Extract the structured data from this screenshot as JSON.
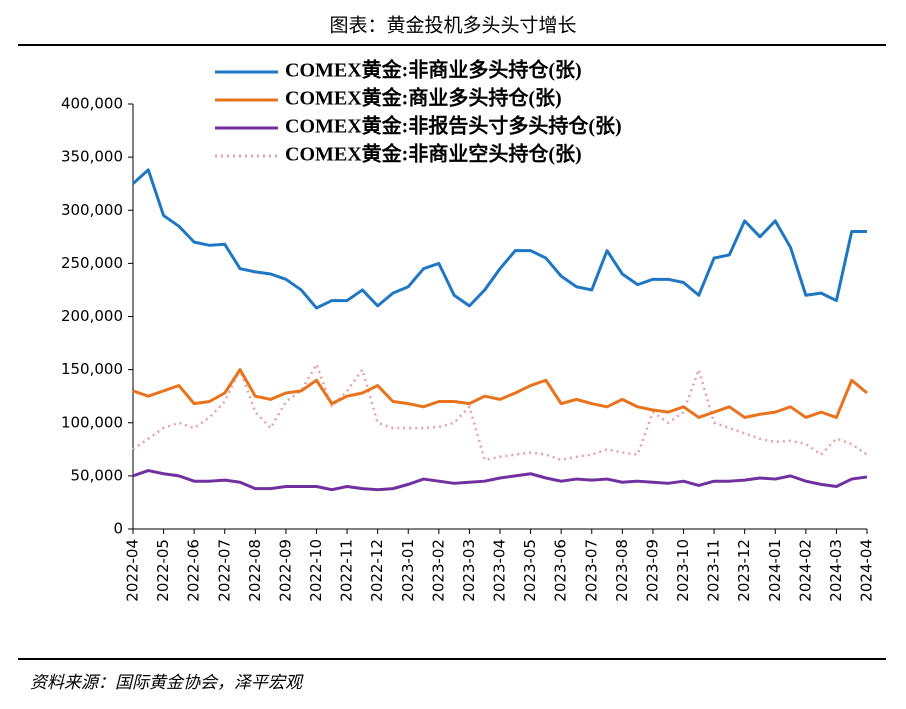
{
  "chart_data": {
    "type": "line",
    "title": "图表：黄金投机多头头寸增长",
    "source": "资料来源：国际黄金协会，泽平宏观",
    "categories": [
      "2022-04",
      null,
      "2022-05",
      null,
      "2022-06",
      null,
      "2022-07",
      null,
      "2022-08",
      null,
      "2022-09",
      null,
      "2022-10",
      null,
      "2022-11",
      null,
      "2022-12",
      null,
      "2023-01",
      null,
      "2023-02",
      null,
      "2023-03",
      null,
      "2023-04",
      null,
      "2023-05",
      null,
      "2023-06",
      null,
      "2023-07",
      null,
      "2023-08",
      null,
      "2023-09",
      null,
      "2023-10",
      null,
      "2023-11",
      null,
      "2023-12",
      null,
      "2024-01",
      null,
      "2024-02",
      null,
      "2024-03",
      null,
      "2024-04"
    ],
    "series": [
      {
        "name": "COMEX黄金:非商业多头持仓(张)",
        "color": "#1f77c4",
        "style": "solid",
        "values": [
          325000,
          338000,
          295000,
          285000,
          270000,
          267000,
          268000,
          245000,
          242000,
          240000,
          235000,
          225000,
          208000,
          215000,
          215000,
          225000,
          210000,
          222000,
          228000,
          245000,
          250000,
          220000,
          210000,
          225000,
          245000,
          262000,
          262000,
          255000,
          238000,
          228000,
          225000,
          262000,
          240000,
          230000,
          235000,
          235000,
          232000,
          220000,
          255000,
          258000,
          290000,
          275000,
          290000,
          265000,
          220000,
          222000,
          215000,
          280000,
          280000
        ]
      },
      {
        "name": "COMEX黄金:商业多头持仓(张)",
        "color": "#e8731c",
        "style": "solid",
        "values": [
          130000,
          125000,
          130000,
          135000,
          118000,
          120000,
          128000,
          150000,
          125000,
          122000,
          128000,
          130000,
          140000,
          118000,
          125000,
          128000,
          135000,
          120000,
          118000,
          115000,
          120000,
          120000,
          118000,
          125000,
          122000,
          128000,
          135000,
          140000,
          118000,
          122000,
          118000,
          115000,
          122000,
          115000,
          112000,
          110000,
          115000,
          105000,
          110000,
          115000,
          105000,
          108000,
          110000,
          115000,
          105000,
          110000,
          105000,
          140000,
          128000
        ]
      },
      {
        "name": "COMEX黄金:非报告头寸多头持仓(张)",
        "color": "#7030a0",
        "style": "solid",
        "values": [
          50000,
          55000,
          52000,
          50000,
          45000,
          45000,
          46000,
          44000,
          38000,
          38000,
          40000,
          40000,
          40000,
          37000,
          40000,
          38000,
          37000,
          38000,
          42000,
          47000,
          45000,
          43000,
          44000,
          45000,
          48000,
          50000,
          52000,
          48000,
          45000,
          47000,
          46000,
          47000,
          44000,
          45000,
          44000,
          43000,
          45000,
          41000,
          45000,
          45000,
          46000,
          48000,
          47000,
          50000,
          45000,
          42000,
          40000,
          47000,
          49000
        ]
      },
      {
        "name": "COMEX黄金:非商业空头持仓(张)",
        "color": "#e8a0a8",
        "style": "dotted",
        "values": [
          75000,
          85000,
          95000,
          100000,
          95000,
          105000,
          120000,
          150000,
          110000,
          95000,
          120000,
          130000,
          155000,
          115000,
          130000,
          150000,
          100000,
          95000,
          95000,
          95000,
          96000,
          100000,
          115000,
          65000,
          68000,
          70000,
          72000,
          70000,
          65000,
          68000,
          70000,
          75000,
          72000,
          70000,
          110000,
          100000,
          110000,
          150000,
          100000,
          95000,
          90000,
          85000,
          82000,
          83000,
          80000,
          70000,
          85000,
          80000,
          70000
        ]
      }
    ],
    "ylim": [
      0,
      400000
    ],
    "yticks": [
      0,
      {
        "value": 50000,
        "label": "50,000"
      },
      {
        "value": 100000,
        "label": "100,000"
      },
      {
        "value": 150000,
        "label": "150,000"
      },
      {
        "value": 200000,
        "label": "200,000"
      },
      {
        "value": 250000,
        "label": "250,000"
      },
      {
        "value": 300000,
        "label": "300,000"
      },
      {
        "value": 350000,
        "label": "350,000"
      },
      {
        "value": 400000,
        "label": "400,000"
      }
    ],
    "legend": "top"
  }
}
